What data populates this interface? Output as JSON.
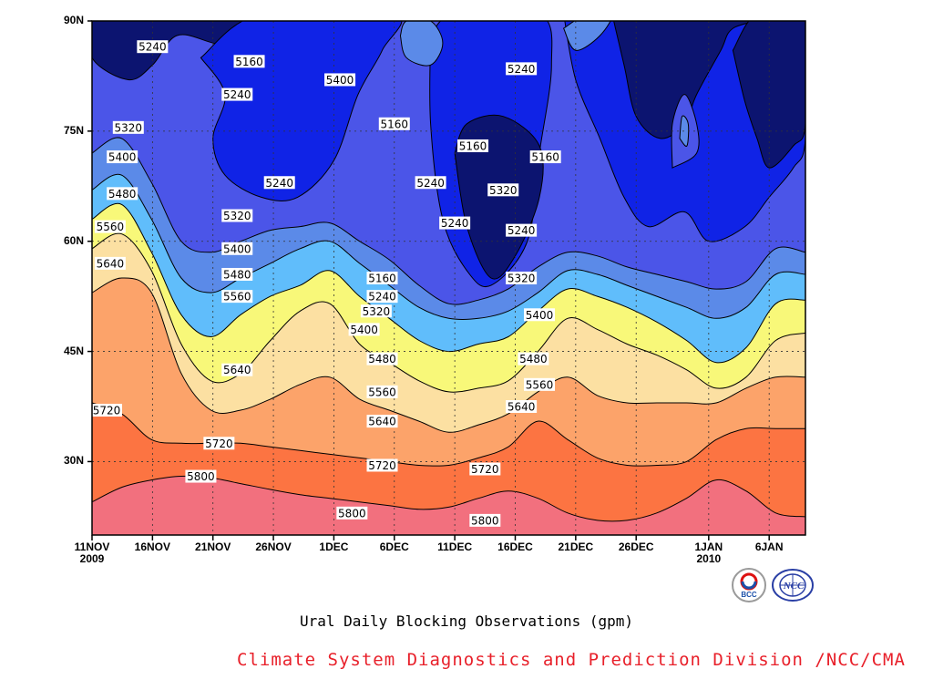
{
  "chart_data": {
    "type": "contour",
    "xlabel": "",
    "ylabel": "",
    "x_ticks": [
      {
        "label": "11NOV",
        "sub": "2009"
      },
      {
        "label": "16NOV",
        "sub": ""
      },
      {
        "label": "21NOV",
        "sub": ""
      },
      {
        "label": "26NOV",
        "sub": ""
      },
      {
        "label": "1DEC",
        "sub": ""
      },
      {
        "label": "6DEC",
        "sub": ""
      },
      {
        "label": "11DEC",
        "sub": ""
      },
      {
        "label": "16DEC",
        "sub": ""
      },
      {
        "label": "21DEC",
        "sub": ""
      },
      {
        "label": "26DEC",
        "sub": ""
      },
      {
        "label": "1JAN",
        "sub": "2010"
      },
      {
        "label": "6JAN",
        "sub": ""
      }
    ],
    "x_tick_days": [
      0,
      5,
      10,
      15,
      20,
      25,
      30,
      35,
      40,
      45,
      51,
      56
    ],
    "xlim_days": [
      0,
      59
    ],
    "y_ticks": [
      {
        "value": 30,
        "label": "30N"
      },
      {
        "value": 45,
        "label": "45N"
      },
      {
        "value": 60,
        "label": "60N"
      },
      {
        "value": 75,
        "label": "75N"
      },
      {
        "value": 90,
        "label": "90N"
      }
    ],
    "ylim": [
      20,
      90
    ],
    "grid": true,
    "contour_levels": [
      5160,
      5240,
      5320,
      5400,
      5480,
      5560,
      5640,
      5720,
      5800
    ],
    "level_colors": [
      "#0c1470",
      "#1023e6",
      "#4b55e8",
      "#5b8ae8",
      "#60bdfb",
      "#f8f879",
      "#fce0a2",
      "#fca36a",
      "#fc7442",
      "#f2707e"
    ],
    "contour_lines": [
      {
        "level": 5800,
        "lat": [
          24.5,
          26.5,
          27.5,
          28.0,
          27.8,
          27.0,
          26.2,
          25.5,
          25.0,
          24.5,
          24.0,
          23.5,
          23.8,
          25.0,
          26.0,
          25.0,
          23.0,
          22.0,
          22.0,
          23.0,
          25.0,
          27.5,
          26.0,
          23.0,
          22.5
        ]
      },
      {
        "level": 5720,
        "lat": [
          38.0,
          36.5,
          33.0,
          32.5,
          32.5,
          32.5,
          32.0,
          31.5,
          31.0,
          30.5,
          30.0,
          29.5,
          29.5,
          30.5,
          32.0,
          35.5,
          33.0,
          30.5,
          29.5,
          29.5,
          30.0,
          33.0,
          34.5,
          34.5,
          34.5
        ]
      },
      {
        "level": 5640,
        "lat": [
          53.0,
          55.0,
          53.0,
          42.0,
          37.0,
          37.0,
          38.5,
          40.5,
          41.5,
          38.5,
          37.0,
          35.5,
          34.0,
          35.0,
          36.5,
          39.5,
          41.5,
          39.0,
          38.0,
          38.0,
          38.0,
          38.0,
          40.0,
          41.5,
          41.5
        ]
      },
      {
        "level": 5560,
        "lat": [
          59.0,
          61.0,
          56.0,
          46.0,
          41.0,
          42.0,
          46.5,
          50.5,
          51.5,
          46.0,
          43.5,
          41.0,
          39.5,
          40.0,
          41.0,
          45.0,
          49.5,
          48.0,
          46.0,
          44.5,
          42.5,
          40.0,
          41.5,
          46.5,
          47.5
        ]
      },
      {
        "level": 5480,
        "lat": [
          63.0,
          65.0,
          58.5,
          50.0,
          47.0,
          50.0,
          52.5,
          54.0,
          56.0,
          52.5,
          49.5,
          46.5,
          45.0,
          46.0,
          47.0,
          50.5,
          53.5,
          52.5,
          51.0,
          49.0,
          46.5,
          43.5,
          45.5,
          51.5,
          52.0
        ]
      },
      {
        "level": 5400,
        "lat": [
          67.0,
          69.0,
          63.0,
          55.0,
          53.0,
          55.0,
          57.0,
          59.0,
          60.0,
          57.0,
          54.0,
          51.0,
          49.5,
          49.5,
          50.5,
          53.0,
          56.0,
          55.5,
          54.0,
          52.5,
          51.0,
          49.5,
          51.0,
          55.5,
          55.5
        ]
      },
      {
        "level": 5320,
        "lat": [
          72.0,
          74.0,
          68.0,
          60.0,
          58.5,
          60.0,
          61.5,
          62.0,
          62.5,
          60.0,
          57.5,
          54.0,
          51.5,
          52.0,
          53.5,
          56.5,
          58.5,
          58.0,
          56.5,
          55.5,
          54.5,
          53.5,
          54.5,
          59.0,
          58.5
        ]
      }
    ],
    "contour_labels": [
      {
        "text": "5240",
        "day": 5.0,
        "lat": 86.5
      },
      {
        "text": "5160",
        "day": 13.0,
        "lat": 84.5
      },
      {
        "text": "5240",
        "day": 12.0,
        "lat": 80.0
      },
      {
        "text": "5320",
        "day": 3.0,
        "lat": 75.5
      },
      {
        "text": "5400",
        "day": 2.5,
        "lat": 71.5
      },
      {
        "text": "5480",
        "day": 2.5,
        "lat": 66.5
      },
      {
        "text": "5560",
        "day": 1.5,
        "lat": 62.0
      },
      {
        "text": "5640",
        "day": 1.5,
        "lat": 57.0
      },
      {
        "text": "5720",
        "day": 0.0,
        "lat": 37.0
      },
      {
        "text": "5720",
        "day": 10.5,
        "lat": 32.5
      },
      {
        "text": "5800",
        "day": 9.0,
        "lat": 28.0
      },
      {
        "text": "5640",
        "day": 12.0,
        "lat": 42.5
      },
      {
        "text": "5560",
        "day": 12.0,
        "lat": 52.5
      },
      {
        "text": "5480",
        "day": 12.0,
        "lat": 55.5
      },
      {
        "text": "5400",
        "day": 12.0,
        "lat": 59.0
      },
      {
        "text": "5320",
        "day": 12.0,
        "lat": 63.5
      },
      {
        "text": "5240",
        "day": 15.5,
        "lat": 68.0
      },
      {
        "text": "5400",
        "day": 20.5,
        "lat": 82.0
      },
      {
        "text": "5160",
        "day": 25.0,
        "lat": 76.0
      },
      {
        "text": "5160",
        "day": 24.0,
        "lat": 55.0
      },
      {
        "text": "5240",
        "day": 24.0,
        "lat": 52.5
      },
      {
        "text": "5320",
        "day": 23.5,
        "lat": 50.5
      },
      {
        "text": "5400",
        "day": 22.5,
        "lat": 48.0
      },
      {
        "text": "5480",
        "day": 24.0,
        "lat": 44.0
      },
      {
        "text": "5560",
        "day": 24.0,
        "lat": 39.5
      },
      {
        "text": "5640",
        "day": 24.0,
        "lat": 35.5
      },
      {
        "text": "5720",
        "day": 24.0,
        "lat": 29.5
      },
      {
        "text": "5800",
        "day": 21.5,
        "lat": 23.0
      },
      {
        "text": "5240",
        "day": 28.0,
        "lat": 68.0
      },
      {
        "text": "5160",
        "day": 31.5,
        "lat": 73.0
      },
      {
        "text": "5240",
        "day": 30.0,
        "lat": 62.5
      },
      {
        "text": "5320",
        "day": 34.0,
        "lat": 67.0
      },
      {
        "text": "5240",
        "day": 35.5,
        "lat": 83.5
      },
      {
        "text": "5160",
        "day": 37.5,
        "lat": 71.5
      },
      {
        "text": "5240",
        "day": 35.5,
        "lat": 61.5
      },
      {
        "text": "5320",
        "day": 35.5,
        "lat": 55.0
      },
      {
        "text": "5400",
        "day": 37.0,
        "lat": 50.0
      },
      {
        "text": "5480",
        "day": 36.5,
        "lat": 44.0
      },
      {
        "text": "5560",
        "day": 37.0,
        "lat": 40.5
      },
      {
        "text": "5640",
        "day": 35.5,
        "lat": 37.5
      },
      {
        "text": "5720",
        "day": 32.5,
        "lat": 29.0
      },
      {
        "text": "5800",
        "day": 32.5,
        "lat": 22.0
      }
    ]
  },
  "caption": "Ural Daily Blocking Observations (gpm)",
  "credit": "Climate System Diagnostics and Prediction Division /NCC/CMA",
  "logos": {
    "bcc_text": "BCC",
    "ncc_text": "NCC"
  }
}
